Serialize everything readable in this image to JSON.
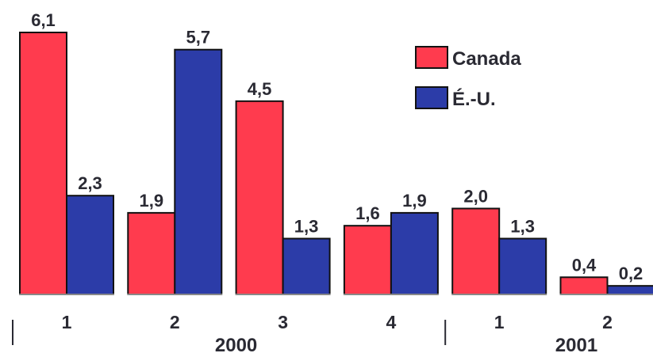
{
  "chart_data": {
    "type": "bar",
    "categories": [
      "1",
      "2",
      "3",
      "4",
      "1",
      "2"
    ],
    "groups": [
      {
        "label": "2000",
        "start": 0,
        "count": 4
      },
      {
        "label": "2001",
        "start": 4,
        "count": 2
      }
    ],
    "series": [
      {
        "name": "Canada",
        "color": "#ff3b4e",
        "values": [
          6.1,
          1.9,
          4.5,
          1.6,
          2.0,
          0.4
        ],
        "labels": [
          "6,1",
          "1,9",
          "4,5",
          "1,6",
          "2,0",
          "0,4"
        ]
      },
      {
        "name": "É.-U.",
        "color": "#2c3ca8",
        "values": [
          2.3,
          5.7,
          1.3,
          1.9,
          1.3,
          0.2
        ],
        "labels": [
          "2,3",
          "5,7",
          "1,3",
          "1,9",
          "1,3",
          "0,2"
        ]
      }
    ],
    "ylim": [
      0,
      6.1
    ],
    "legend_position": "top-right",
    "grid": false
  }
}
